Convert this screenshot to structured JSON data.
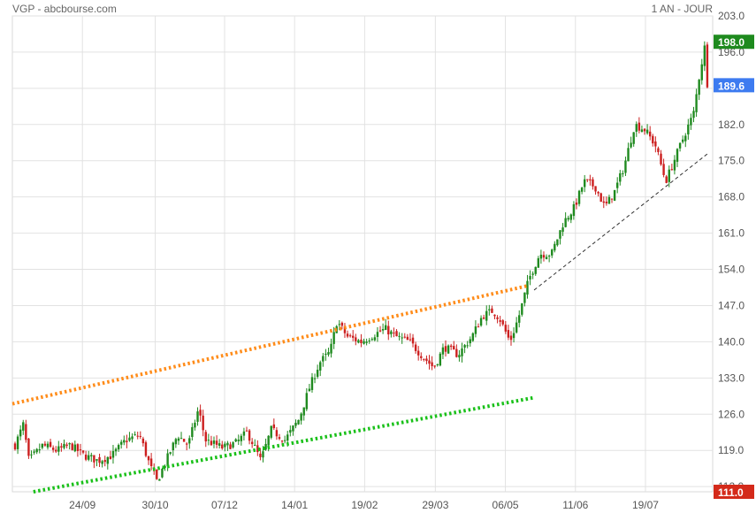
{
  "header": {
    "source": "VGP - abcbourse.com",
    "period": "1 AN - JOUR"
  },
  "chart_data": {
    "type": "candlestick",
    "title": "VGP - abcbourse.com",
    "subtitle": "1 AN - JOUR",
    "y_axis": {
      "position": "right",
      "range": [
        111,
        203
      ],
      "ticks": [
        "203.0",
        "196.0",
        "189.0",
        "182.0",
        "175.0",
        "168.0",
        "161.0",
        "154.0",
        "147.0",
        "140.0",
        "133.0",
        "126.0",
        "119.0",
        "112.0"
      ]
    },
    "x_axis": {
      "tick_labels": [
        "24/09",
        "30/10",
        "07/12",
        "14/01",
        "19/02",
        "29/03",
        "06/05",
        "11/06",
        "19/07"
      ]
    },
    "grid": true,
    "price_tags": [
      {
        "label": "198.0",
        "value": 198.0,
        "color": "#1e8a1e"
      },
      {
        "label": "189.6",
        "value": 189.6,
        "color": "#3d7bf0"
      },
      {
        "label": "111.0",
        "value": 111.0,
        "color": "#d42a1a"
      }
    ],
    "trendlines": [
      {
        "from": [
          0,
          128.0
        ],
        "to": [
          0.735,
          150.8
        ],
        "color": "#ff8c1a",
        "style": "dotted"
      },
      {
        "from": [
          0.03,
          111.0
        ],
        "to": [
          0.745,
          129.2
        ],
        "color": "#19c019",
        "style": "dotted"
      },
      {
        "from": [
          0.745,
          150.0
        ],
        "to": [
          0.995,
          176.6
        ],
        "color": "#333333",
        "style": "dashed"
      }
    ],
    "anchors": [
      [
        0,
        120
      ],
      [
        0.012,
        124
      ],
      [
        0.02,
        117
      ],
      [
        0.04,
        120
      ],
      [
        0.06,
        119
      ],
      [
        0.08,
        120
      ],
      [
        0.1,
        118
      ],
      [
        0.12,
        117
      ],
      [
        0.14,
        118
      ],
      [
        0.16,
        121
      ],
      [
        0.18,
        122
      ],
      [
        0.195,
        116
      ],
      [
        0.205,
        113
      ],
      [
        0.215,
        116
      ],
      [
        0.235,
        122
      ],
      [
        0.25,
        120
      ],
      [
        0.265,
        127
      ],
      [
        0.275,
        121
      ],
      [
        0.3,
        119.5
      ],
      [
        0.32,
        120.5
      ],
      [
        0.335,
        122.5
      ],
      [
        0.345,
        120
      ],
      [
        0.355,
        117
      ],
      [
        0.37,
        123
      ],
      [
        0.39,
        121
      ],
      [
        0.41,
        125
      ],
      [
        0.425,
        131
      ],
      [
        0.44,
        136
      ],
      [
        0.455,
        138
      ],
      [
        0.465,
        144
      ],
      [
        0.48,
        141
      ],
      [
        0.5,
        140
      ],
      [
        0.52,
        141.5
      ],
      [
        0.535,
        142.5
      ],
      [
        0.55,
        141
      ],
      [
        0.57,
        140
      ],
      [
        0.59,
        137
      ],
      [
        0.605,
        135
      ],
      [
        0.62,
        139
      ],
      [
        0.64,
        137.5
      ],
      [
        0.66,
        141
      ],
      [
        0.675,
        145
      ],
      [
        0.69,
        146
      ],
      [
        0.7,
        144.5
      ],
      [
        0.715,
        140
      ],
      [
        0.728,
        145
      ],
      [
        0.742,
        152
      ],
      [
        0.758,
        157
      ],
      [
        0.775,
        157
      ],
      [
        0.792,
        163
      ],
      [
        0.808,
        166
      ],
      [
        0.822,
        171
      ],
      [
        0.838,
        170
      ],
      [
        0.852,
        166
      ],
      [
        0.866,
        169
      ],
      [
        0.88,
        174
      ],
      [
        0.895,
        182
      ],
      [
        0.91,
        181
      ],
      [
        0.925,
        178
      ],
      [
        0.94,
        171
      ],
      [
        0.955,
        176
      ],
      [
        0.97,
        181
      ],
      [
        0.98,
        184
      ],
      [
        0.988,
        191
      ],
      [
        0.996,
        197
      ],
      [
        1.0,
        190
      ]
    ]
  },
  "colors": {
    "up": "#1f8a1f",
    "down": "#cc1f1f",
    "grid": "#e2e2e2",
    "axis_text": "#555555"
  }
}
